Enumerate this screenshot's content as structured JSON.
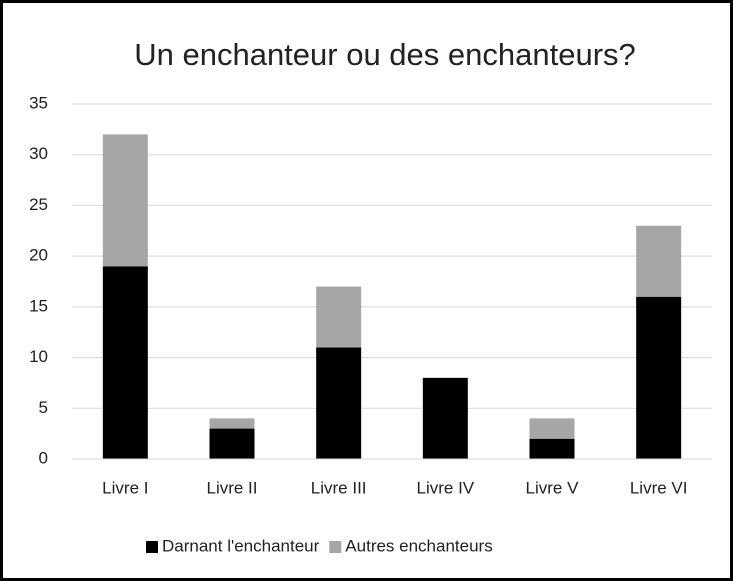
{
  "chart_data": {
    "type": "bar",
    "stacked": true,
    "title": "Un enchanteur ou des enchanteurs?",
    "categories": [
      "Livre I",
      "Livre II",
      "Livre III",
      "Livre IV",
      "Livre V",
      "Livre VI"
    ],
    "series": [
      {
        "name": "Darnant l'enchanteur",
        "color": "#000000",
        "values": [
          19,
          3,
          11,
          8,
          2,
          16
        ]
      },
      {
        "name": "Autres enchanteurs",
        "color": "#a6a6a6",
        "values": [
          13,
          1,
          6,
          0,
          2,
          7
        ]
      }
    ],
    "ylim": [
      0,
      35
    ],
    "yticks": [
      0,
      5,
      10,
      15,
      20,
      25,
      30,
      35
    ],
    "grid": true,
    "legend": "bottom"
  }
}
